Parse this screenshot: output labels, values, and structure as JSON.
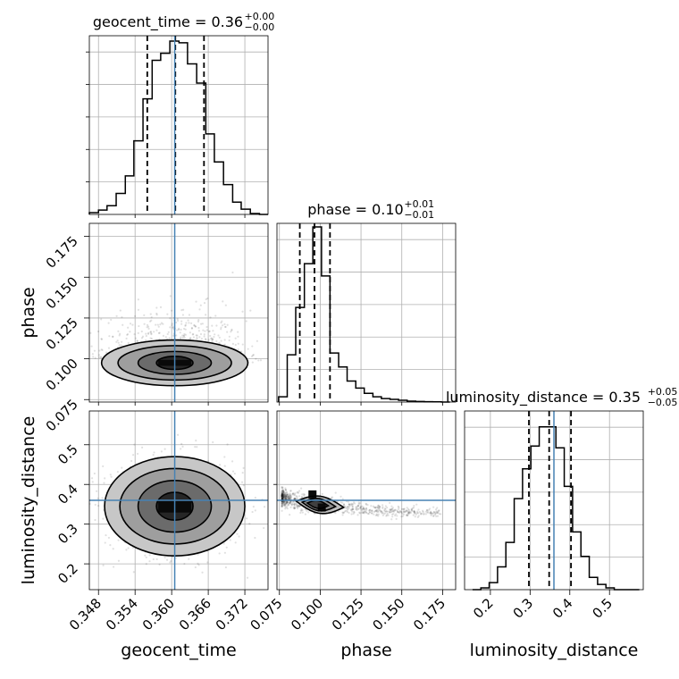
{
  "chart_data": {
    "type": "corner",
    "parameters": [
      "geocent_time",
      "phase",
      "luminosity_distance"
    ],
    "truths": {
      "geocent_time": 0.3605,
      "phase": null,
      "luminosity_distance": 0.36
    },
    "truth_color": "#4682b4",
    "titles": [
      {
        "parameter": "geocent_time",
        "text": "geocent_time = 0.36",
        "plus": "+0.00",
        "minus": "−0.00"
      },
      {
        "parameter": "phase",
        "text": "phase = 0.10",
        "plus": "+0.01",
        "minus": "−0.01"
      },
      {
        "parameter": "luminosity_distance",
        "text": "luminosity_distance = 0.35",
        "plus": "+0.05",
        "minus": "−0.05"
      }
    ],
    "ranges": {
      "geocent_time": [
        0.3465,
        0.3758
      ],
      "phase": [
        0.0735,
        0.183
      ],
      "luminosity_distance": [
        0.135,
        0.585
      ]
    },
    "ticks": {
      "geocent_time": [
        "0.348",
        "0.354",
        "0.360",
        "0.366",
        "0.372"
      ],
      "phase": [
        "0.075",
        "0.100",
        "0.125",
        "0.150",
        "0.175"
      ],
      "luminosity_distance": [
        "0.2",
        "0.3",
        "0.4",
        "0.5"
      ]
    },
    "xlabels": [
      "geocent_time",
      "phase",
      "luminosity_distance"
    ],
    "ylabels": [
      "phase",
      "luminosity_distance"
    ],
    "histograms": [
      {
        "parameter": "geocent_time",
        "bin_edges": [
          0.3465,
          0.348,
          0.3494,
          0.3509,
          0.3524,
          0.3538,
          0.3553,
          0.3568,
          0.3582,
          0.3597,
          0.3612,
          0.3626,
          0.3641,
          0.3656,
          0.367,
          0.3685,
          0.37,
          0.3714,
          0.3729,
          0.3744,
          0.3758
        ],
        "heights": [
          0.01,
          0.025,
          0.05,
          0.12,
          0.22,
          0.42,
          0.66,
          0.88,
          0.92,
          0.99,
          0.98,
          0.86,
          0.75,
          0.46,
          0.3,
          0.17,
          0.07,
          0.03,
          0.005,
          0.0
        ],
        "quantiles": [
          0.356,
          0.3606,
          0.3653
        ]
      },
      {
        "parameter": "phase",
        "bin_edges": [
          0.0745,
          0.0798,
          0.085,
          0.0903,
          0.0955,
          0.1008,
          0.106,
          0.1113,
          0.1165,
          0.1218,
          0.127,
          0.1323,
          0.1375,
          0.1428,
          0.148,
          0.1533,
          0.1585,
          0.1638,
          0.169,
          0.1743,
          0.1795
        ],
        "heights": [
          0.03,
          0.27,
          0.54,
          0.79,
          1.0,
          0.72,
          0.28,
          0.2,
          0.12,
          0.08,
          0.05,
          0.03,
          0.02,
          0.015,
          0.01,
          0.005,
          0.003,
          0.002,
          0.001,
          0.0
        ],
        "quantiles": [
          0.0875,
          0.0965,
          0.106
        ]
      },
      {
        "parameter": "luminosity_distance",
        "bin_edges": [
          0.155,
          0.176,
          0.197,
          0.218,
          0.239,
          0.26,
          0.281,
          0.302,
          0.323,
          0.344,
          0.365,
          0.386,
          0.407,
          0.428,
          0.449,
          0.47,
          0.491,
          0.512,
          0.533,
          0.554,
          0.575
        ],
        "heights": [
          0.0,
          0.01,
          0.04,
          0.13,
          0.27,
          0.52,
          0.69,
          0.82,
          0.93,
          0.93,
          0.81,
          0.59,
          0.33,
          0.19,
          0.07,
          0.03,
          0.01,
          0.0,
          0.0,
          0.0
        ],
        "quantiles": [
          0.297,
          0.348,
          0.403
        ]
      }
    ],
    "joint": [
      {
        "x": "geocent_time",
        "y": "phase",
        "mean": [
          0.3605,
          0.0975
        ],
        "sd": [
          0.0046,
          0.0085
        ],
        "contour_half_widths": [
          [
            0.003,
            0.004
          ],
          [
            0.006,
            0.007
          ],
          [
            0.0093,
            0.0105
          ],
          [
            0.012,
            0.014
          ]
        ]
      },
      {
        "x": "geocent_time",
        "y": "luminosity_distance",
        "mean": [
          0.3605,
          0.345
        ],
        "sd": [
          0.0046,
          0.05
        ],
        "contour_half_widths": [
          [
            0.003,
            0.035
          ],
          [
            0.006,
            0.065
          ],
          [
            0.009,
            0.095
          ],
          [
            0.0115,
            0.125
          ]
        ]
      },
      {
        "x": "phase",
        "y": "luminosity_distance",
        "banana": {
          "a": 0.004,
          "b": 0.0145,
          "c": -0.0124,
          "x_min": 0.0765,
          "x_max": 0.174
        },
        "mean": [
          0.0975,
          0.35
        ]
      }
    ]
  }
}
